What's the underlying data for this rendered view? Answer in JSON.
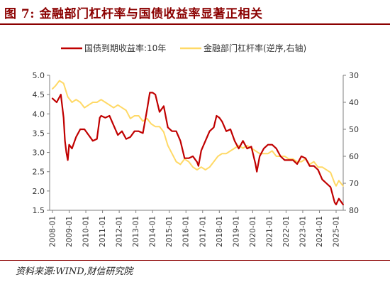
{
  "figure": {
    "title": "图 7:  金融部门杠杆率与国债收益率显著正相关",
    "source": "资料来源:WIND,财信研究院"
  },
  "colors": {
    "title": "#8b0000",
    "series_yield": "#c00000",
    "series_leverage": "#ffd966",
    "axis": "#7f7f7f",
    "text": "#333333"
  },
  "chart_data": {
    "type": "line",
    "title": "",
    "xlabel": "",
    "ylabel": "",
    "y2label": "",
    "legend_position": "top",
    "grid": false,
    "x_ticks": [
      "2008-01",
      "2009-01",
      "2010-01",
      "2011-01",
      "2012-01",
      "2013-01",
      "2014-01",
      "2015-01",
      "2016-01",
      "2017-01",
      "2018-01",
      "2019-01",
      "2020-01",
      "2021-01",
      "2022-01",
      "2023-01",
      "2024-01",
      "2025-01"
    ],
    "y_left": {
      "min": 1.5,
      "max": 5.0,
      "ticks": [
        "1.5",
        "2.0",
        "2.5",
        "3.0",
        "3.5",
        "4.0",
        "4.5",
        "5.0"
      ]
    },
    "y_right": {
      "min": 30,
      "max": 80,
      "reversed": true,
      "ticks": [
        "30",
        "40",
        "50",
        "60",
        "70",
        "80"
      ]
    },
    "series": [
      {
        "name": "国债到期收益率:10年",
        "axis": "left",
        "x": [
          "2008-01",
          "2008-04",
          "2008-07",
          "2008-09",
          "2008-10",
          "2008-11",
          "2008-12",
          "2009-01",
          "2009-03",
          "2009-06",
          "2009-09",
          "2009-12",
          "2010-03",
          "2010-06",
          "2010-09",
          "2010-11",
          "2010-12",
          "2011-03",
          "2011-06",
          "2011-09",
          "2011-12",
          "2012-03",
          "2012-06",
          "2012-09",
          "2012-12",
          "2013-03",
          "2013-06",
          "2013-09",
          "2013-11",
          "2014-01",
          "2014-03",
          "2014-06",
          "2014-09",
          "2014-12",
          "2015-03",
          "2015-06",
          "2015-09",
          "2015-12",
          "2016-03",
          "2016-06",
          "2016-09",
          "2016-10",
          "2016-12",
          "2017-03",
          "2017-06",
          "2017-09",
          "2017-11",
          "2018-01",
          "2018-03",
          "2018-06",
          "2018-09",
          "2018-12",
          "2019-03",
          "2019-06",
          "2019-09",
          "2019-12",
          "2020-03",
          "2020-04",
          "2020-06",
          "2020-09",
          "2020-12",
          "2021-03",
          "2021-06",
          "2021-09",
          "2021-12",
          "2022-03",
          "2022-06",
          "2022-09",
          "2022-12",
          "2023-03",
          "2023-06",
          "2023-09",
          "2023-12",
          "2024-03",
          "2024-06",
          "2024-09",
          "2024-12",
          "2025-01",
          "2025-03",
          "2025-06"
        ],
        "y": [
          4.4,
          4.3,
          4.5,
          3.9,
          3.3,
          3.0,
          2.8,
          3.2,
          3.1,
          3.4,
          3.6,
          3.6,
          3.45,
          3.3,
          3.35,
          3.9,
          3.95,
          3.9,
          3.95,
          3.7,
          3.45,
          3.55,
          3.35,
          3.4,
          3.55,
          3.55,
          3.5,
          4.1,
          4.55,
          4.55,
          4.5,
          4.05,
          4.2,
          3.65,
          3.55,
          3.55,
          3.3,
          2.85,
          2.85,
          2.9,
          2.75,
          2.65,
          3.05,
          3.3,
          3.55,
          3.65,
          3.95,
          3.9,
          3.8,
          3.55,
          3.6,
          3.3,
          3.1,
          3.3,
          3.1,
          3.15,
          2.7,
          2.5,
          2.9,
          3.1,
          3.2,
          3.2,
          3.1,
          2.9,
          2.8,
          2.8,
          2.8,
          2.7,
          2.9,
          2.85,
          2.65,
          2.65,
          2.55,
          2.3,
          2.2,
          2.1,
          1.7,
          1.65,
          1.8,
          1.65
        ]
      },
      {
        "name": "金融部门杠杆率(逆序,右轴)",
        "axis": "right",
        "x": [
          "2008-01",
          "2008-03",
          "2008-06",
          "2008-09",
          "2008-12",
          "2009-03",
          "2009-06",
          "2009-09",
          "2009-12",
          "2010-03",
          "2010-06",
          "2010-09",
          "2010-12",
          "2011-03",
          "2011-06",
          "2011-09",
          "2011-12",
          "2012-03",
          "2012-06",
          "2012-09",
          "2012-12",
          "2013-03",
          "2013-06",
          "2013-09",
          "2013-12",
          "2014-03",
          "2014-06",
          "2014-09",
          "2014-12",
          "2015-03",
          "2015-06",
          "2015-09",
          "2015-12",
          "2016-03",
          "2016-06",
          "2016-09",
          "2016-12",
          "2017-03",
          "2017-06",
          "2017-09",
          "2017-12",
          "2018-03",
          "2018-06",
          "2018-09",
          "2018-12",
          "2019-03",
          "2019-06",
          "2019-09",
          "2019-12",
          "2020-03",
          "2020-06",
          "2020-09",
          "2020-12",
          "2021-03",
          "2021-06",
          "2021-09",
          "2021-12",
          "2022-03",
          "2022-06",
          "2022-09",
          "2022-12",
          "2023-03",
          "2023-06",
          "2023-09",
          "2023-12",
          "2024-03",
          "2024-06",
          "2024-09",
          "2024-12",
          "2025-01",
          "2025-03",
          "2025-06"
        ],
        "y": [
          35,
          34,
          32,
          33,
          38,
          40,
          39,
          40,
          42,
          41,
          40,
          40,
          39,
          40,
          41,
          42,
          41,
          42,
          43,
          46,
          45,
          45,
          47,
          46,
          48,
          49,
          49,
          51,
          56,
          59,
          62,
          63,
          61,
          62,
          64,
          65,
          64,
          65,
          64,
          62,
          60,
          59,
          59,
          58,
          57,
          56,
          57,
          56,
          57,
          58,
          59,
          59,
          59,
          58,
          60,
          60,
          60,
          61,
          61,
          62,
          62,
          61,
          63,
          62,
          64,
          64,
          65,
          66,
          70,
          71,
          69,
          71
        ]
      }
    ]
  }
}
